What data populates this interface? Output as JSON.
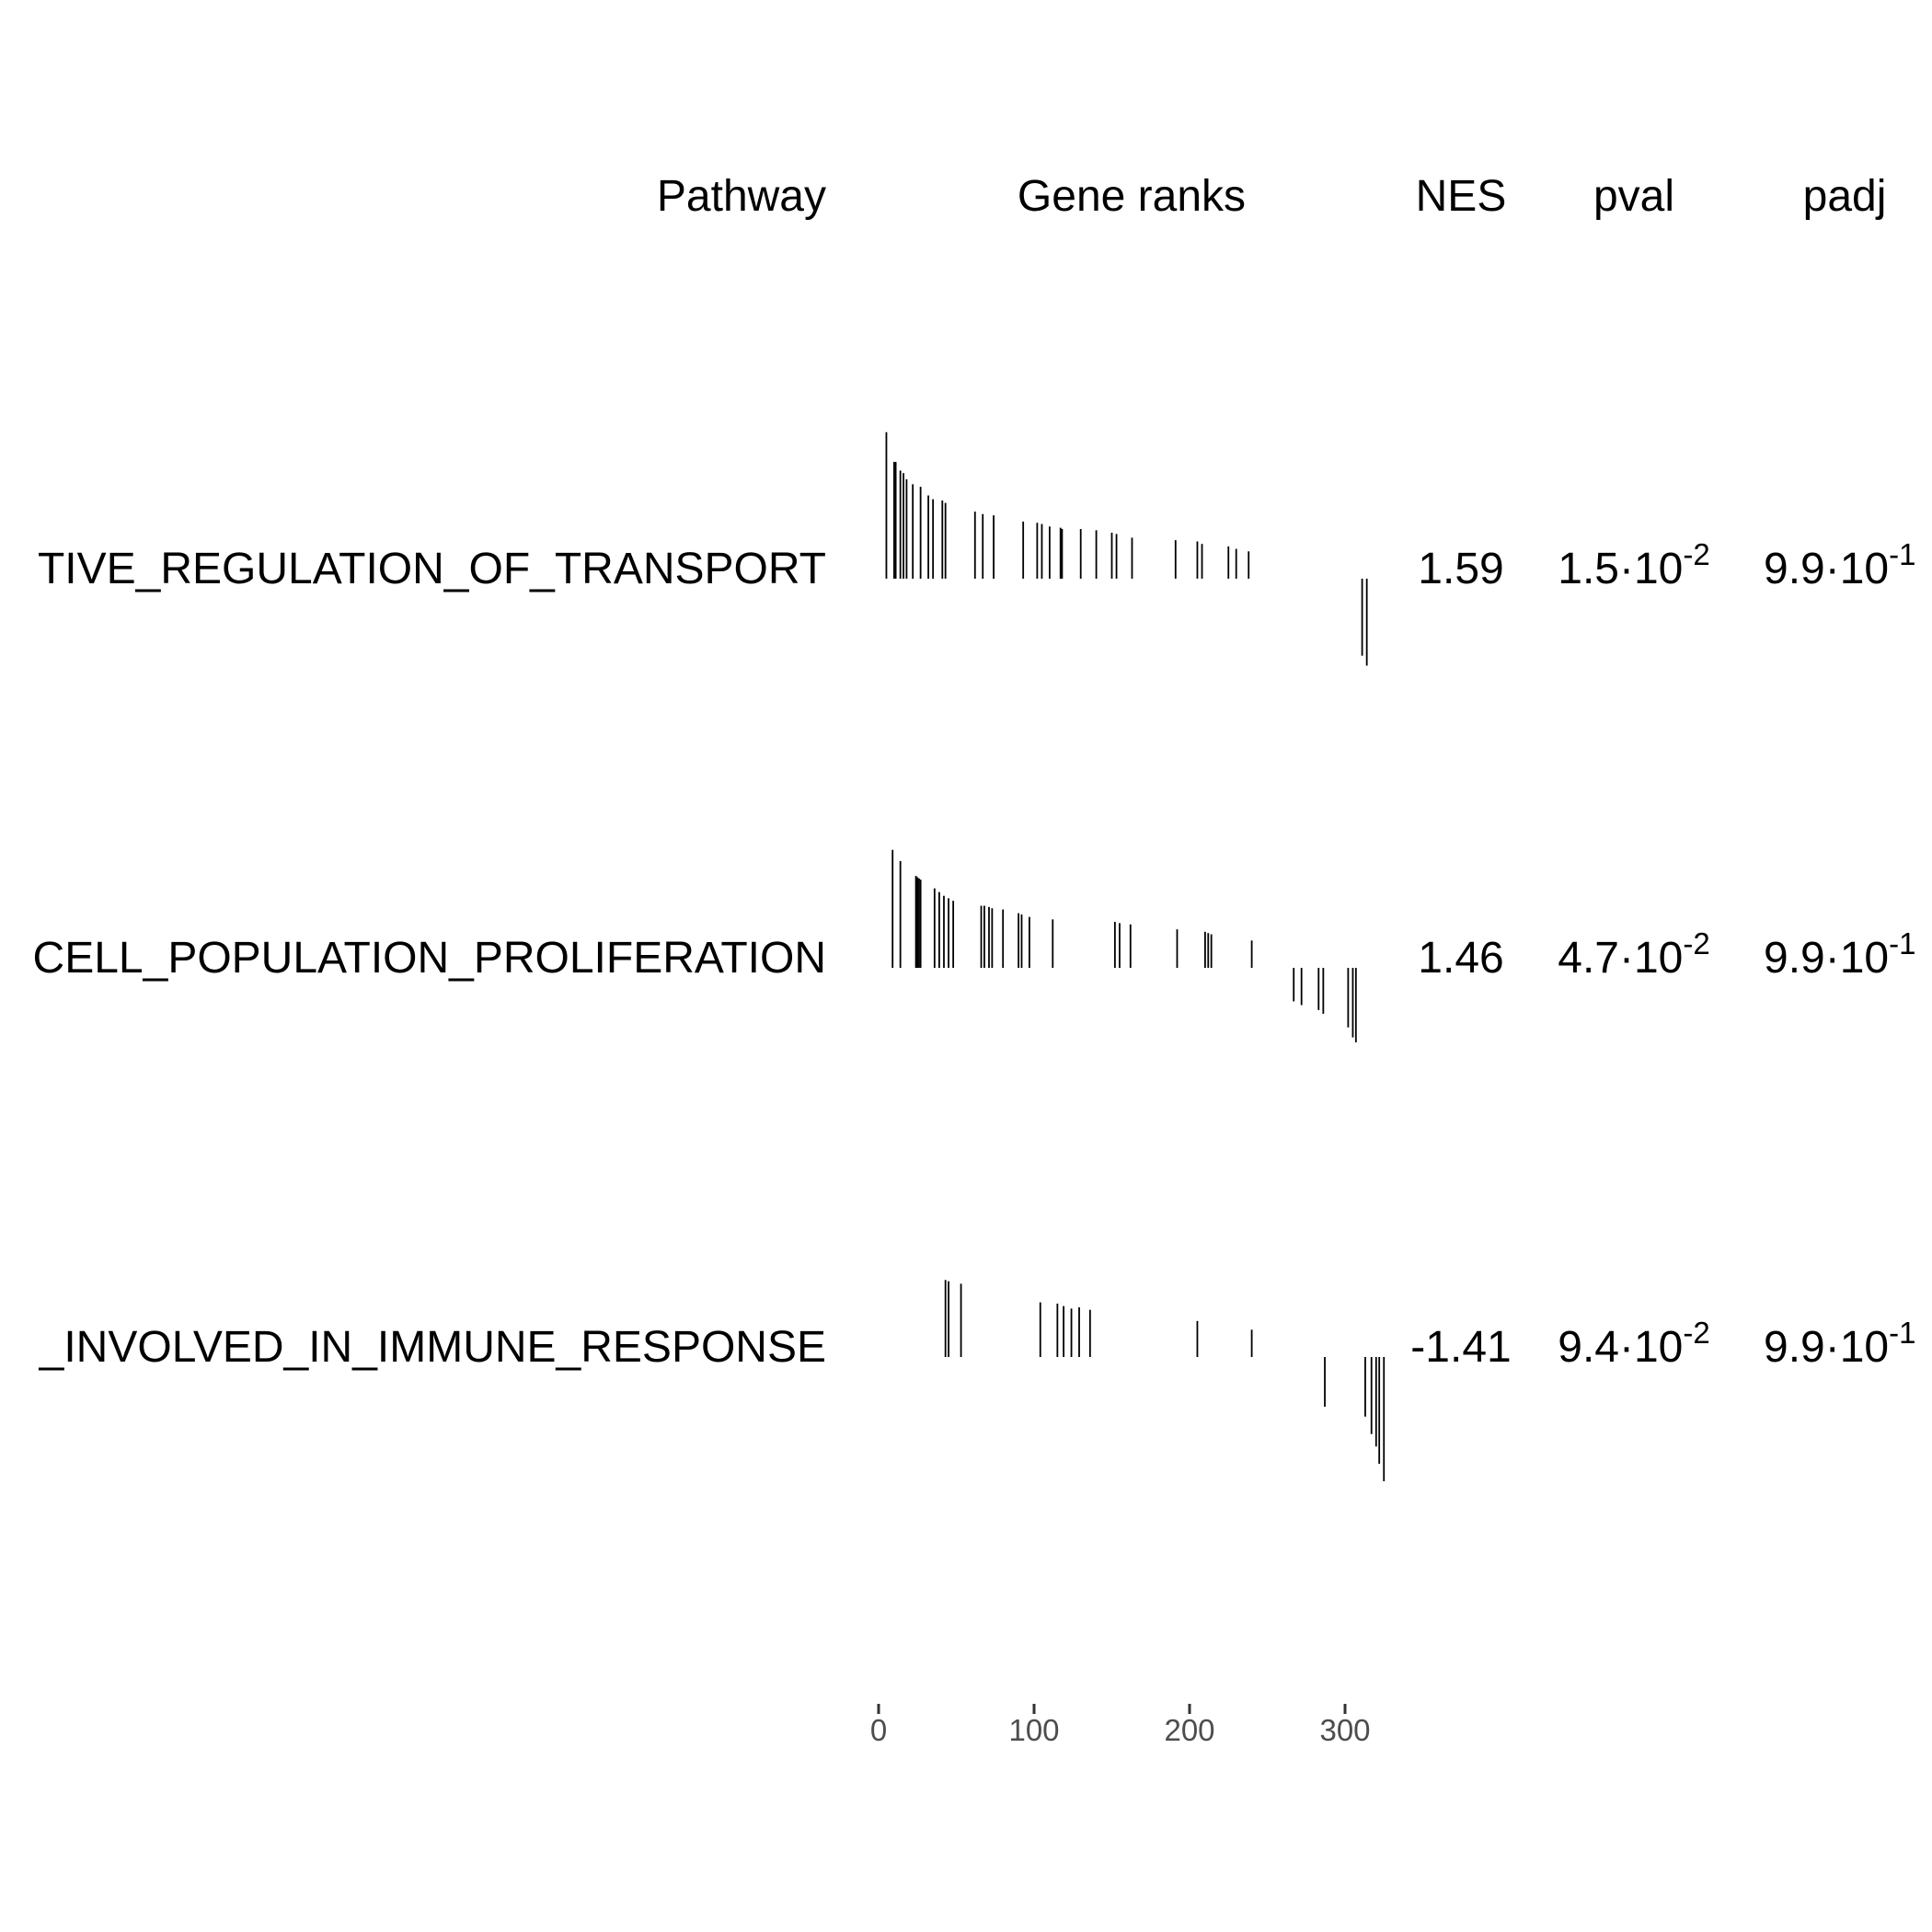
{
  "chart_data": {
    "type": "table",
    "headers": {
      "pathway": "Pathway",
      "gene_ranks": "Gene ranks",
      "nes": "NES",
      "pval": "pval",
      "padj": "padj"
    },
    "rows": [
      {
        "pathway": "TIVE_REGULATION_OF_TRANSPORT",
        "nes": "1.59",
        "pval_mantissa": "1.5",
        "pval_exponent": "-2",
        "padj_mantissa": "9.9",
        "padj_exponent": "-1",
        "ranks": [
          5,
          10,
          11,
          14,
          16,
          18,
          22,
          27,
          32,
          35,
          41,
          43,
          62,
          67,
          74,
          93,
          102,
          105,
          110,
          117,
          118,
          130,
          140,
          150,
          153,
          163,
          191,
          205,
          208,
          225,
          230,
          238,
          311,
          314
        ],
        "heights": [
          118,
          94,
          94,
          87,
          85,
          80,
          76,
          74,
          67,
          64,
          63,
          61,
          54,
          52,
          51,
          46,
          45,
          44,
          42,
          41,
          40,
          40,
          39,
          37,
          36,
          33,
          31,
          30,
          28,
          26,
          24,
          22,
          -62,
          -70
        ]
      },
      {
        "pathway": "CELL_POPULATION_PROLIFERATION",
        "nes": "1.46",
        "pval_mantissa": "4.7",
        "pval_exponent": "-2",
        "padj_mantissa": "9.9",
        "padj_exponent": "-1",
        "ranks": [
          9,
          14,
          24,
          25,
          26,
          27,
          36,
          39,
          42,
          45,
          48,
          66,
          68,
          71,
          73,
          80,
          90,
          92,
          97,
          112,
          152,
          155,
          162,
          192,
          210,
          212,
          214,
          240,
          267,
          272,
          283,
          286,
          302,
          305,
          307
        ],
        "heights": [
          95,
          86,
          74,
          73,
          72,
          71,
          64,
          61,
          58,
          56,
          54,
          50,
          50,
          49,
          48,
          47,
          44,
          43,
          41,
          39,
          37,
          36,
          35,
          31,
          29,
          28,
          27,
          22,
          -27,
          -30,
          -34,
          -37,
          -48,
          -56,
          -60
        ]
      },
      {
        "pathway": "_INVOLVED_IN_IMMUNE_RESPONSE",
        "nes": "-1.41",
        "pval_mantissa": "9.4",
        "pval_exponent": "-2",
        "padj_mantissa": "9.9",
        "padj_exponent": "-1",
        "ranks": [
          43,
          45,
          53,
          104,
          115,
          119,
          124,
          129,
          136,
          205,
          240,
          287,
          313,
          317,
          320,
          322,
          325
        ],
        "heights": [
          62,
          61,
          59,
          44,
          43,
          41,
          39,
          40,
          38,
          29,
          22,
          -40,
          -48,
          -62,
          -72,
          -86,
          -100
        ]
      }
    ],
    "x_axis": {
      "ticks": [
        0,
        100,
        200,
        300
      ],
      "domain": [
        0,
        325
      ]
    },
    "grid": false
  }
}
